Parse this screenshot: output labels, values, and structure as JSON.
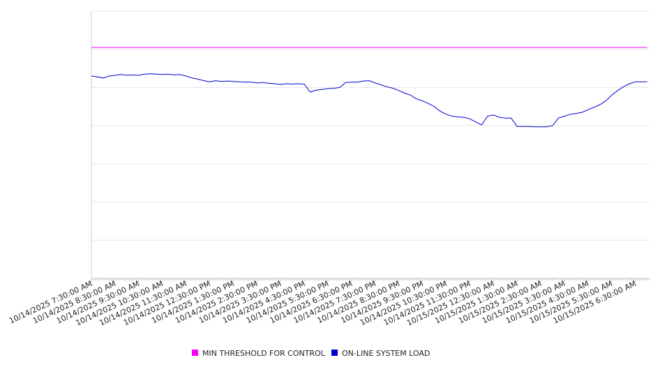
{
  "chart_data": {
    "type": "line",
    "title": "",
    "xlabel": "",
    "ylabel": "",
    "ylim": [
      0,
      7
    ],
    "grid": true,
    "legend_position": "bottom",
    "x_tick_labels": [
      "10/14/2025 7:30:00 AM",
      "10/14/2025 8:30:00 AM",
      "10/14/2025 9:30:00 AM",
      "10/14/2025 10:30:00 AM",
      "10/14/2025 11:30:00 AM",
      "10/14/2025 12:30:00 PM",
      "10/14/2025 1:30:00 PM",
      "10/14/2025 2:30:00 PM",
      "10/14/2025 3:30:00 PM",
      "10/14/2025 4:30:00 PM",
      "10/14/2025 5:30:00 PM",
      "10/14/2025 6:30:00 PM",
      "10/14/2025 7:30:00 PM",
      "10/14/2025 8:30:00 PM",
      "10/14/2025 9:30:00 PM",
      "10/14/2025 10:30:00 PM",
      "10/14/2025 11:30:00 PM",
      "10/15/2025 12:30:00 AM",
      "10/15/2025 1:30:00 AM",
      "10/15/2025 2:30:00 AM",
      "10/15/2025 3:30:00 AM",
      "10/15/2025 4:30:00 AM",
      "10/15/2025 5:30:00 AM",
      "10/15/2025 6:30:00 AM"
    ],
    "x_hours": [
      0,
      0.25,
      0.5,
      0.75,
      1,
      1.25,
      1.5,
      1.75,
      2,
      2.25,
      2.5,
      2.75,
      3,
      3.25,
      3.5,
      3.75,
      4,
      4.25,
      4.5,
      4.75,
      5,
      5.25,
      5.5,
      5.75,
      6,
      6.25,
      6.5,
      6.75,
      7,
      7.25,
      7.5,
      7.75,
      8,
      8.25,
      8.5,
      8.75,
      9,
      9.25,
      9.5,
      9.75,
      10,
      10.25,
      10.5,
      10.75,
      11,
      11.25,
      11.5,
      11.75,
      12,
      12.25,
      12.5,
      12.75,
      13,
      13.25,
      13.5,
      13.75,
      14,
      14.25,
      14.5,
      14.75,
      15,
      15.25,
      15.5,
      15.75,
      16,
      16.25,
      16.5,
      16.75,
      17,
      17.25,
      17.5,
      17.75,
      18,
      18.25,
      18.5,
      18.75,
      19,
      19.25,
      19.5,
      19.75,
      20,
      20.25,
      20.5,
      20.75,
      21,
      21.25,
      21.5,
      21.75,
      22,
      22.25,
      22.5,
      22.75,
      23,
      23.25,
      23.5
    ],
    "series": [
      {
        "name": "MIN THRESHOLD FOR CONTROL",
        "color": "#ff00ff",
        "values": [
          6.05,
          6.05,
          6.05,
          6.05,
          6.05,
          6.05,
          6.05,
          6.05,
          6.05,
          6.05,
          6.05,
          6.05,
          6.05,
          6.05,
          6.05,
          6.05,
          6.05,
          6.05,
          6.05,
          6.05,
          6.05,
          6.05,
          6.05,
          6.05,
          6.05,
          6.05,
          6.05,
          6.05,
          6.05,
          6.05,
          6.05,
          6.05,
          6.05,
          6.05,
          6.05,
          6.05,
          6.05,
          6.05,
          6.05,
          6.05,
          6.05,
          6.05,
          6.05,
          6.05,
          6.05,
          6.05,
          6.05,
          6.05,
          6.05,
          6.05,
          6.05,
          6.05,
          6.05,
          6.05,
          6.05,
          6.05,
          6.05,
          6.05,
          6.05,
          6.05,
          6.05,
          6.05,
          6.05,
          6.05,
          6.05,
          6.05,
          6.05,
          6.05,
          6.05,
          6.05,
          6.05,
          6.05,
          6.05,
          6.05,
          6.05,
          6.05,
          6.05,
          6.05,
          6.05,
          6.05,
          6.05,
          6.05,
          6.05,
          6.05,
          6.05,
          6.05,
          6.05,
          6.05,
          6.05,
          6.05,
          6.05,
          6.05,
          6.05,
          6.05,
          6.05
        ]
      },
      {
        "name": "ON-LINE SYSTEM LOAD",
        "color": "#0000cc",
        "values": [
          5.3,
          5.28,
          5.25,
          5.3,
          5.32,
          5.34,
          5.32,
          5.33,
          5.32,
          5.35,
          5.36,
          5.35,
          5.34,
          5.35,
          5.33,
          5.34,
          5.3,
          5.25,
          5.22,
          5.18,
          5.15,
          5.18,
          5.16,
          5.17,
          5.16,
          5.15,
          5.14,
          5.14,
          5.12,
          5.13,
          5.11,
          5.1,
          5.08,
          5.1,
          5.09,
          5.1,
          5.09,
          4.88,
          4.93,
          4.95,
          4.97,
          4.98,
          5.0,
          5.13,
          5.14,
          5.14,
          5.17,
          5.18,
          5.12,
          5.07,
          5.02,
          4.98,
          4.92,
          4.85,
          4.8,
          4.7,
          4.65,
          4.58,
          4.5,
          4.38,
          4.3,
          4.25,
          4.23,
          4.22,
          4.18,
          4.1,
          4.02,
          4.25,
          4.28,
          4.22,
          4.2,
          4.2,
          3.98,
          3.98,
          3.98,
          3.97,
          3.97,
          3.97,
          4.0,
          4.2,
          4.25,
          4.3,
          4.32,
          4.35,
          4.42,
          4.48,
          4.55,
          4.65,
          4.8,
          4.92,
          5.02,
          5.1,
          5.15,
          5.15,
          5.15
        ]
      }
    ],
    "legend": [
      {
        "label": "MIN THRESHOLD FOR CONTROL",
        "color": "#ff00ff"
      },
      {
        "label": "ON-LINE SYSTEM LOAD",
        "color": "#0000cc"
      }
    ]
  }
}
